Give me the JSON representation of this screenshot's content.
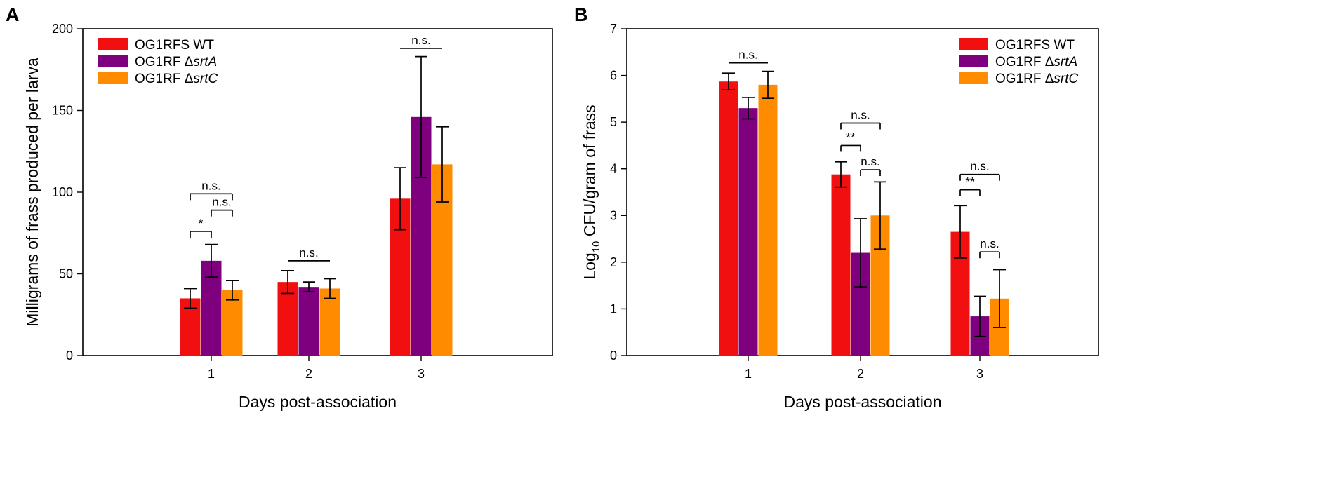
{
  "colors": {
    "wt": "#f20f0f",
    "srtA": "#7f007f",
    "srtC": "#ff8c00"
  },
  "chart_data": [
    {
      "panel": "A",
      "type": "bar",
      "xlabel": "Days post-association",
      "ylabel": "Milligrams of frass produced per larva",
      "ylim": [
        0,
        200
      ],
      "yticks": [
        "0",
        "50",
        "100",
        "150",
        "200"
      ],
      "categories": [
        "1",
        "2",
        "3"
      ],
      "legend_position": "top-left",
      "series": [
        {
          "name": "OG1RFS WT",
          "prefix": "OG1RFS WT",
          "italic": "",
          "color_key": "wt",
          "values": [
            35,
            45,
            96
          ],
          "errors": [
            6,
            7,
            19
          ]
        },
        {
          "name": "OG1RF ΔsrtA",
          "prefix": "OG1RF Δ",
          "italic": "srtA",
          "color_key": "srtA",
          "values": [
            58,
            42,
            146
          ],
          "errors": [
            10,
            3,
            37
          ]
        },
        {
          "name": "OG1RF ΔsrtC",
          "prefix": "OG1RF Δ",
          "italic": "srtC",
          "color_key": "srtC",
          "values": [
            40,
            41,
            117
          ],
          "errors": [
            6,
            6,
            23
          ]
        }
      ],
      "annotations": [
        {
          "text": "n.s.",
          "category": 0,
          "from": 0,
          "to": 2,
          "y": 99,
          "ticks": true
        },
        {
          "text": "n.s.",
          "category": 0,
          "from": 1,
          "to": 2,
          "y": 89,
          "ticks": true
        },
        {
          "text": "*",
          "category": 0,
          "from": 0,
          "to": 1,
          "y": 76,
          "ticks": true
        },
        {
          "text": "n.s.",
          "category": 1,
          "from": 0,
          "to": 2,
          "y": 58,
          "ticks": false
        },
        {
          "text": "n.s.",
          "category": 2,
          "from": 0,
          "to": 2,
          "y": 188,
          "ticks": false
        }
      ]
    },
    {
      "panel": "B",
      "type": "bar",
      "xlabel": "Days post-association",
      "ylabel_main": "Log",
      "ylabel_sub": "10",
      "ylabel_rest": " CFU/gram of frass",
      "ylim": [
        0,
        7
      ],
      "yticks": [
        "0",
        "1",
        "2",
        "3",
        "4",
        "5",
        "6",
        "7"
      ],
      "categories": [
        "1",
        "2",
        "3"
      ],
      "legend_position": "top-right",
      "series": [
        {
          "name": "OG1RFS WT",
          "prefix": "OG1RFS WT",
          "italic": "",
          "color_key": "wt",
          "values": [
            5.87,
            3.88,
            2.65
          ],
          "errors": [
            0.18,
            0.27,
            0.56
          ]
        },
        {
          "name": "OG1RF ΔsrtA",
          "prefix": "OG1RF Δ",
          "italic": "srtA",
          "color_key": "srtA",
          "values": [
            5.3,
            2.2,
            0.84
          ],
          "errors": [
            0.23,
            0.73,
            0.43
          ]
        },
        {
          "name": "OG1RF ΔsrtC",
          "prefix": "OG1RF Δ",
          "italic": "srtC",
          "color_key": "srtC",
          "values": [
            5.8,
            3.0,
            1.22
          ],
          "errors": [
            0.29,
            0.72,
            0.62
          ]
        }
      ],
      "annotations": [
        {
          "text": "n.s.",
          "category": 0,
          "from": 0,
          "to": 2,
          "y": 6.27,
          "ticks": false
        },
        {
          "text": "n.s.",
          "category": 1,
          "from": 0,
          "to": 2,
          "y": 4.98,
          "ticks": true
        },
        {
          "text": "**",
          "category": 1,
          "from": 0,
          "to": 1,
          "y": 4.5,
          "ticks": true
        },
        {
          "text": "n.s.",
          "category": 1,
          "from": 1,
          "to": 2,
          "y": 3.98,
          "ticks": true
        },
        {
          "text": "n.s.",
          "category": 2,
          "from": 0,
          "to": 2,
          "y": 3.88,
          "ticks": true
        },
        {
          "text": "**",
          "category": 2,
          "from": 0,
          "to": 1,
          "y": 3.55,
          "ticks": true
        },
        {
          "text": "n.s.",
          "category": 2,
          "from": 1,
          "to": 2,
          "y": 2.22,
          "ticks": true
        }
      ]
    }
  ]
}
